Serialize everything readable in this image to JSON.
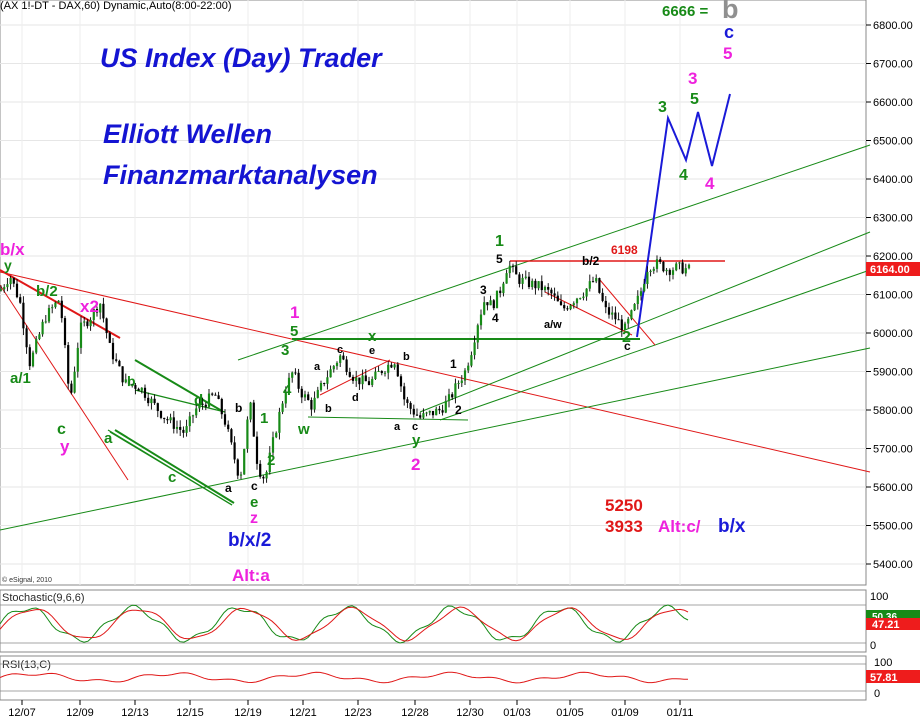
{
  "chart_data": {
    "type": "candlestick",
    "header": "(AX 1!-DT - DAX,60) Dynamic,Auto(8:00-22:00)",
    "watermark": "© eSignal, 2010",
    "titles": [
      "US Index (Day) Trader",
      "Elliott Wellen",
      "Finanzmarktanalysen"
    ],
    "price_axis": {
      "ticks": [
        "5400.00",
        "5500.00",
        "5600.00",
        "5700.00",
        "5800.00",
        "5900.00",
        "6000.00",
        "6100.00",
        "6200.00",
        "6300.00",
        "6400.00",
        "6500.00",
        "6600.00",
        "6700.00",
        "6800.00"
      ],
      "ylim": [
        5360,
        6870
      ],
      "last_price": "6164.00",
      "grid": true
    },
    "date_axis": {
      "ticks": [
        "12/07",
        "12/09",
        "12/13",
        "12/15",
        "12/19",
        "12/21",
        "12/23",
        "12/28",
        "12/30",
        "01/03",
        "01/05",
        "01/09",
        "01/11"
      ]
    },
    "price_path": {
      "x": [
        0,
        10,
        20,
        30,
        45,
        60,
        70,
        80,
        90,
        100,
        110,
        125,
        140,
        155,
        165,
        175,
        185,
        195,
        205,
        215,
        225,
        232,
        240,
        250,
        258,
        265,
        275,
        285,
        293,
        300,
        312,
        325,
        340,
        355,
        370,
        380,
        395,
        405,
        412,
        420,
        430,
        440,
        450,
        458,
        465,
        472,
        478,
        485,
        492,
        500,
        508,
        518,
        528,
        540,
        552,
        562,
        575,
        585,
        595,
        605,
        615,
        625,
        632,
        640,
        648,
        658,
        668,
        678,
        690
      ],
      "y": [
        6110,
        6150,
        6080,
        5920,
        6040,
        6090,
        5820,
        6010,
        6040,
        6080,
        5960,
        5870,
        5860,
        5810,
        5780,
        5760,
        5740,
        5800,
        5820,
        5840,
        5770,
        5700,
        5620,
        5820,
        5650,
        5620,
        5740,
        5850,
        5900,
        5850,
        5810,
        5880,
        5940,
        5880,
        5870,
        5900,
        5930,
        5820,
        5800,
        5780,
        5790,
        5800,
        5830,
        5870,
        5900,
        5960,
        6030,
        6090,
        6070,
        6110,
        6180,
        6140,
        6130,
        6120,
        6100,
        6060,
        6090,
        6110,
        6140,
        6060,
        6040,
        6010,
        6050,
        6100,
        6175,
        6180,
        6165,
        6170,
        6164
      ]
    },
    "annotations": {
      "wave_labels": [
        "y",
        "b/x",
        "a/1",
        "c",
        "y",
        "b/2",
        "x2",
        "a",
        "b",
        "c",
        "d",
        "a",
        "b",
        "c",
        "e",
        "z",
        "b/x/2",
        "1",
        "2",
        "3",
        "4",
        "5",
        "1",
        "w",
        "x",
        "a",
        "b",
        "c",
        "d",
        "e",
        "a",
        "b",
        "c",
        "y",
        "1",
        "2",
        "2",
        "3",
        "4",
        "5",
        "1",
        "b/2",
        "a/w",
        "c",
        "2",
        "6198",
        "3",
        "4",
        "5",
        "3",
        "4",
        "5",
        "c",
        "b",
        "6666 ="
      ],
      "alt_top": "Alt:a",
      "alt_box": [
        "5250",
        "3933",
        "Alt:c/",
        "b/x"
      ]
    },
    "indicators": [
      {
        "name": "Stochastic(9,6,6)",
        "ylim": [
          0,
          100
        ],
        "ticks": [
          "100",
          "0"
        ],
        "last": [
          "50.36",
          "47.21"
        ]
      },
      {
        "name": "RSI(13,C)",
        "ylim": [
          0,
          100
        ],
        "ticks": [
          "100",
          "0"
        ],
        "last": [
          "57.81"
        ]
      }
    ]
  },
  "colors": {
    "title": "#1414d2",
    "green": "#178a17",
    "red": "#e01818",
    "magenta": "#ee22dd",
    "blue": "#1a1ad8",
    "black": "#000000",
    "gray": "#909090",
    "price_tag": "#ee1c1c"
  }
}
